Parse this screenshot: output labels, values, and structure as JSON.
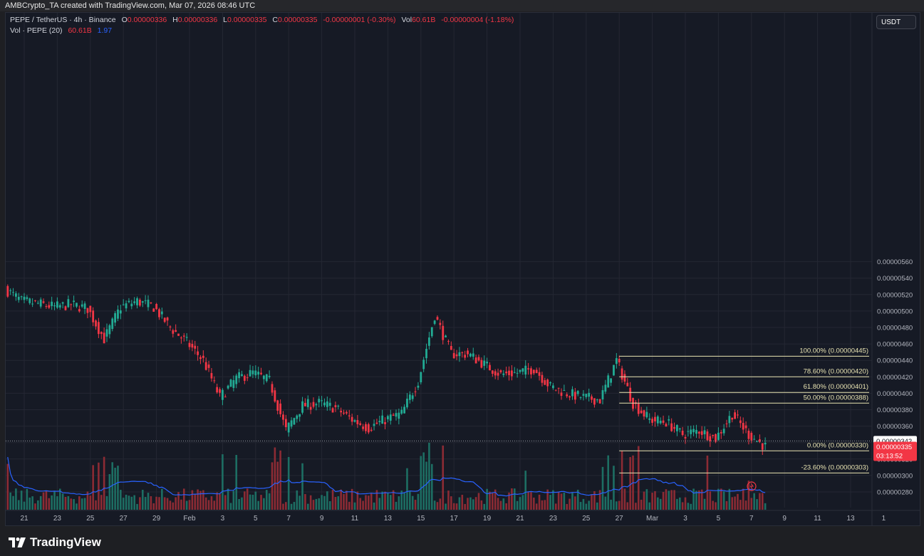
{
  "header": {
    "caption": "AMBCrypto_TA created with TradingView.com, Mar 07, 2026 08:46 UTC"
  },
  "legend": {
    "symbol": "PEPE / TetherUS · 4h · Binance",
    "o_label": "O",
    "o_value": "0.00000336",
    "h_label": "H",
    "h_value": "0.00000336",
    "l_label": "L",
    "l_value": "0.00000335",
    "c_label": "C",
    "c_value": "0.00000335",
    "change": "-0.00000001 (-0.30%)",
    "vol_label": "Vol",
    "vol_value": "60.61B",
    "vol_change": "-0.00000004 (-1.18%)",
    "vol_indicator": "Vol · PEPE (20)",
    "vol_indicator_value": "60.61B",
    "vol_ma_value": "1.97"
  },
  "currency_button": "USDT",
  "brand": {
    "name": "TradingView"
  },
  "colors": {
    "up": "#22ab94",
    "down": "#f23645",
    "vol_up": "#1d6e63",
    "vol_down": "#8c2b34",
    "fib_line": "#e8e3b2",
    "vol_ma": "#2962ff",
    "background": "#161a25",
    "grid": "#242733",
    "axis_text": "#b2b5be"
  },
  "chart_data": {
    "type": "candlestick",
    "title": "",
    "xlabel": "",
    "ylabel": "",
    "y_ticks": [
      "0.00000280",
      "0.00000300",
      "0.00000320",
      "0.00000340",
      "0.00000360",
      "0.00000380",
      "0.00000400",
      "0.00000420",
      "0.00000440",
      "0.00000460",
      "0.00000480",
      "0.00000500",
      "0.00000520",
      "0.00000540",
      "0.00000560"
    ],
    "x_ticks": [
      "21",
      "23",
      "25",
      "27",
      "29",
      "Feb",
      "3",
      "5",
      "7",
      "9",
      "11",
      "13",
      "15",
      "17",
      "19",
      "21",
      "23",
      "25",
      "27",
      "Mar",
      "3",
      "5",
      "7",
      "9",
      "11",
      "13",
      "1"
    ],
    "ylim": [
      2.73e-06,
      5.63e-06
    ],
    "price_anchors": [
      {
        "date": "Jan 20",
        "price": 5.27e-06
      },
      {
        "date": "Jan 21",
        "price": 5.12e-06
      },
      {
        "date": "Jan 22",
        "price": 5.09e-06
      },
      {
        "date": "Jan 23",
        "price": 5.05e-06
      },
      {
        "date": "Jan 24",
        "price": 5.08e-06
      },
      {
        "date": "Jan 25",
        "price": 5.03e-06
      },
      {
        "date": "Jan 26",
        "price": 4.66e-06
      },
      {
        "date": "Jan 27",
        "price": 5.05e-06
      },
      {
        "date": "Jan 28",
        "price": 5.12e-06
      },
      {
        "date": "Jan 29",
        "price": 5.05e-06
      },
      {
        "date": "Jan 30",
        "price": 4.8e-06
      },
      {
        "date": "Jan 31",
        "price": 4.62e-06
      },
      {
        "date": "Feb 1",
        "price": 4.4e-06
      },
      {
        "date": "Feb 2",
        "price": 3.95e-06
      },
      {
        "date": "Feb 3",
        "price": 4.18e-06
      },
      {
        "date": "Feb 4",
        "price": 4.25e-06
      },
      {
        "date": "Feb 5",
        "price": 4.15e-06
      },
      {
        "date": "Feb 6",
        "price": 3.55e-06
      },
      {
        "date": "Feb 7",
        "price": 3.85e-06
      },
      {
        "date": "Feb 8",
        "price": 3.88e-06
      },
      {
        "date": "Feb 9",
        "price": 3.82e-06
      },
      {
        "date": "Feb 10",
        "price": 3.68e-06
      },
      {
        "date": "Feb 11",
        "price": 3.58e-06
      },
      {
        "date": "Feb 12",
        "price": 3.68e-06
      },
      {
        "date": "Feb 13",
        "price": 3.75e-06
      },
      {
        "date": "Feb 14",
        "price": 4.15e-06
      },
      {
        "date": "Feb 15",
        "price": 4.95e-06
      },
      {
        "date": "Feb 16",
        "price": 4.48e-06
      },
      {
        "date": "Feb 17",
        "price": 4.48e-06
      },
      {
        "date": "Feb 18",
        "price": 4.35e-06
      },
      {
        "date": "Feb 19",
        "price": 4.23e-06
      },
      {
        "date": "Feb 20",
        "price": 4.25e-06
      },
      {
        "date": "Feb 21",
        "price": 4.3e-06
      },
      {
        "date": "Feb 22",
        "price": 4.08e-06
      },
      {
        "date": "Feb 23",
        "price": 4e-06
      },
      {
        "date": "Feb 24",
        "price": 3.95e-06
      },
      {
        "date": "Feb 25",
        "price": 3.92e-06
      },
      {
        "date": "Feb 26",
        "price": 4.4e-06
      },
      {
        "date": "Feb 27",
        "price": 3.88e-06
      },
      {
        "date": "Feb 28",
        "price": 3.68e-06
      },
      {
        "date": "Mar 1",
        "price": 3.65e-06
      },
      {
        "date": "Mar 2",
        "price": 3.5e-06
      },
      {
        "date": "Mar 3",
        "price": 3.55e-06
      },
      {
        "date": "Mar 4",
        "price": 3.45e-06
      },
      {
        "date": "Mar 5",
        "price": 3.75e-06
      },
      {
        "date": "Mar 6",
        "price": 3.5e-06
      },
      {
        "date": "Mar 7",
        "price": 3.35e-06
      }
    ],
    "current_price": {
      "value": 3.35e-06,
      "label": "0.00000335",
      "countdown": "03:13:52"
    },
    "crosshair_price": {
      "value": 3.42e-06,
      "label": "0.00000342"
    },
    "fibonacci": [
      {
        "label": "100.00% (0.00000445)",
        "value": 4.45e-06
      },
      {
        "label": "78.60% (0.00000420)",
        "value": 4.2e-06
      },
      {
        "label": "61.80% (0.00000401)",
        "value": 4.01e-06
      },
      {
        "label": "50.00% (0.00000388)",
        "value": 3.88e-06
      },
      {
        "label": "0.00% (0.00000330)",
        "value": 3.3e-06
      },
      {
        "label": "-23.60% (0.00000303)",
        "value": 3.03e-06
      }
    ],
    "fib_start_date": "Feb 26"
  }
}
